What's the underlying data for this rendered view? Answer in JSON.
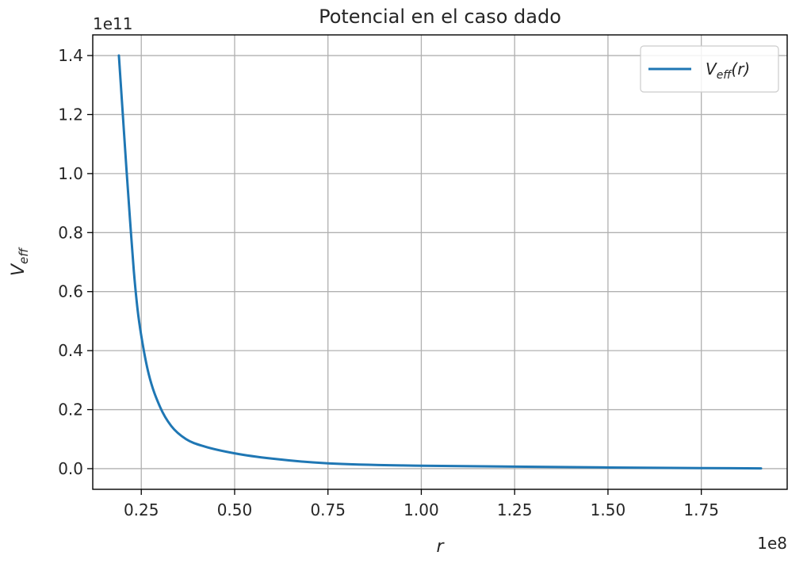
{
  "chart_data": {
    "type": "line",
    "title": "Potencial en el caso dado",
    "xlabel": "r",
    "ylabel": "V_eff",
    "ylabel_main": "V",
    "ylabel_sub": "eff",
    "x_offset_label": "1e8",
    "y_offset_label": "1e11",
    "xlim": [
      0.12,
      1.98
    ],
    "ylim": [
      -0.07,
      1.47
    ],
    "x_ticks": [
      0.25,
      0.5,
      0.75,
      1.0,
      1.25,
      1.5,
      1.75
    ],
    "x_tick_labels": [
      "0.25",
      "0.50",
      "0.75",
      "1.00",
      "1.25",
      "1.50",
      "1.75"
    ],
    "y_ticks": [
      0.0,
      0.2,
      0.4,
      0.6,
      0.8,
      1.0,
      1.2,
      1.4
    ],
    "y_tick_labels": [
      "0.0",
      "0.2",
      "0.4",
      "0.6",
      "0.8",
      "1.0",
      "1.2",
      "1.4"
    ],
    "grid": true,
    "legend_position": "top-right",
    "series": [
      {
        "name": "V_eff(r)",
        "legend_main": "V",
        "legend_sub": "eff",
        "legend_suffix": "(r)",
        "color": "#1f77b4",
        "x": [
          0.19,
          0.2,
          0.21,
          0.22,
          0.23,
          0.24,
          0.25,
          0.27,
          0.3,
          0.33,
          0.37,
          0.42,
          0.5,
          0.6,
          0.75,
          1.0,
          1.25,
          1.5,
          1.75,
          1.91
        ],
        "y": [
          1.4,
          1.21,
          1.02,
          0.84,
          0.67,
          0.54,
          0.45,
          0.32,
          0.21,
          0.145,
          0.1,
          0.075,
          0.052,
          0.034,
          0.018,
          0.01,
          0.007,
          0.004,
          0.002,
          0.001
        ]
      }
    ]
  }
}
